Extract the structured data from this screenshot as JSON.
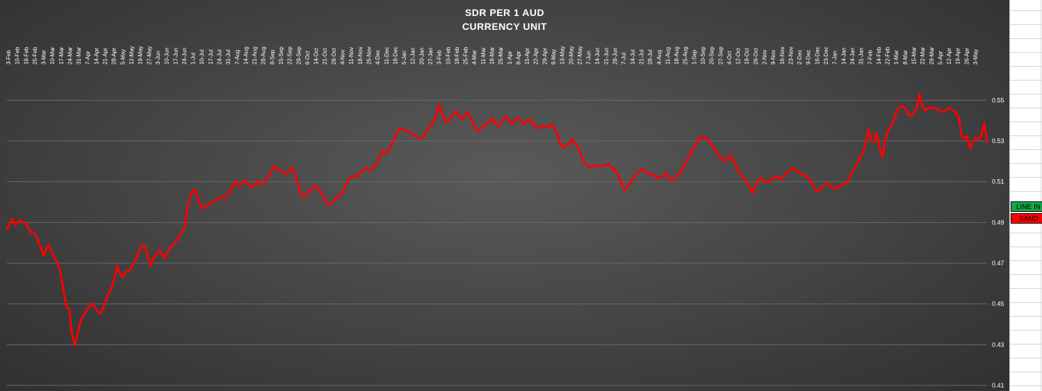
{
  "chart_data": {
    "type": "line",
    "title": [
      "SDR PER 1 AUD",
      "CURRENCY UNIT"
    ],
    "ylim": [
      0.41,
      0.56
    ],
    "y_ticks": [
      "0.41",
      "0.43",
      "0.45",
      "0.47",
      "0.49",
      "0.51",
      "0.53",
      "0.55"
    ],
    "x_tick_labels": [
      "3-Feb",
      "10-Feb",
      "18-Feb",
      "25-Feb",
      "3-Mar",
      "10-Mar",
      "17-Mar",
      "24-Mar",
      "31-Mar",
      "7-Apr",
      "14-Apr",
      "21-Apr",
      "28-Apr",
      "5-May",
      "12-May",
      "19-May",
      "27-May",
      "3-Jun",
      "10-Jun",
      "17-Jun",
      "24-Jun",
      "1-Jul",
      "10-Jul",
      "17-Jul",
      "24-Jul",
      "31-Jul",
      "7-Aug",
      "14-Aug",
      "21-Aug",
      "28-Aug",
      "8-Sep",
      "15-Sep",
      "22-Sep",
      "29-Sep",
      "6-Oct",
      "14-Oct",
      "21-Oct",
      "28-Oct",
      "4-Nov",
      "11-Nov",
      "18-Nov",
      "25-Nov",
      "4-Dec",
      "11-Dec",
      "18-Dec",
      "5-Jan",
      "12-Jan",
      "20-Jan",
      "27-Jan",
      "3-Feb",
      "10-Feb",
      "18-Feb",
      "25-Feb",
      "4-Mar",
      "11-Mar",
      "18-Mar",
      "25-Mar",
      "1-Apr",
      "8-Apr",
      "15-Apr",
      "22-Apr",
      "29-Apr",
      "6-May",
      "13-May",
      "20-May",
      "27-May",
      "7-Jun",
      "14-Jun",
      "21-Jun",
      "28-Jun",
      "7-Jul",
      "14-Jul",
      "21-Jul",
      "28-Jul",
      "4-Aug",
      "11-Aug",
      "18-Aug",
      "25-Aug",
      "1-Sep",
      "10-Sep",
      "20-Sep",
      "27-Sep",
      "4-Oct",
      "12-Oct",
      "19-Oct",
      "26-Oct",
      "2-Nov",
      "9-Nov",
      "16-Nov",
      "23-Nov",
      "2-Dec",
      "9-Dec",
      "16-Dec",
      "23-Dec",
      "7-Jan",
      "14-Jan",
      "24-Jan",
      "31-Jan",
      "7-Feb",
      "14-Feb",
      "22-Feb",
      "1-Mar",
      "8-Mar",
      "15-Mar",
      "22-Mar",
      "29-Mar",
      "5-Apr",
      "12-Apr",
      "19-Apr",
      "26-Apr",
      "3-May"
    ],
    "series": [
      {
        "color": "#ff0000",
        "values": [
          0.4866,
          0.4893,
          0.4918,
          0.4889,
          0.4905,
          0.4911,
          0.4898,
          0.4895,
          0.4855,
          0.4853,
          0.4845,
          0.4809,
          0.4776,
          0.4736,
          0.4774,
          0.4789,
          0.4749,
          0.4721,
          0.4699,
          0.4649,
          0.4569,
          0.4487,
          0.4477,
          0.4353,
          0.4299,
          0.4351,
          0.4413,
          0.4442,
          0.4466,
          0.4482,
          0.4506,
          0.4483,
          0.4467,
          0.4453,
          0.4476,
          0.4514,
          0.4555,
          0.4576,
          0.4621,
          0.4687,
          0.4648,
          0.4632,
          0.4657,
          0.4662,
          0.4677,
          0.4702,
          0.4732,
          0.4767,
          0.4791,
          0.4779,
          0.4725,
          0.4691,
          0.4727,
          0.4749,
          0.4765,
          0.4743,
          0.4725,
          0.4758,
          0.4783,
          0.4791,
          0.4808,
          0.4834,
          0.4852,
          0.4878,
          0.4979,
          0.5032,
          0.5061,
          0.5048,
          0.5001,
          0.4967,
          0.4975,
          0.4986,
          0.4989,
          0.5001,
          0.5012,
          0.5021,
          0.5023,
          0.5019,
          0.5033,
          0.5052,
          0.5082,
          0.5101,
          0.5079,
          0.5091,
          0.5102,
          0.5098,
          0.5082,
          0.5073,
          0.5089,
          0.5102,
          0.5088,
          0.5094,
          0.5112,
          0.5137,
          0.5161,
          0.5178,
          0.5161,
          0.5152,
          0.5148,
          0.5137,
          0.5153,
          0.5171,
          0.5138,
          0.5092,
          0.5039,
          0.5021,
          0.5034,
          0.5056,
          0.5071,
          0.5079,
          0.5064,
          0.5051,
          0.5029,
          0.5002,
          0.4986,
          0.4995,
          0.5012,
          0.5028,
          0.5033,
          0.5051,
          0.5087,
          0.5113,
          0.5126,
          0.5128,
          0.5125,
          0.5141,
          0.5159,
          0.5168,
          0.5162,
          0.5158,
          0.5169,
          0.5192,
          0.5223,
          0.5251,
          0.5241,
          0.5252,
          0.5274,
          0.5301,
          0.5339,
          0.5362,
          0.5359,
          0.5351,
          0.5349,
          0.5337,
          0.5329,
          0.5322,
          0.5313,
          0.5318,
          0.5333,
          0.5359,
          0.5376,
          0.5389,
          0.5433,
          0.5479,
          0.5436,
          0.5401,
          0.5393,
          0.5412,
          0.5437,
          0.5446,
          0.5422,
          0.5407,
          0.5423,
          0.5443,
          0.5418,
          0.5388,
          0.5356,
          0.5349,
          0.5365,
          0.5378,
          0.5387,
          0.5397,
          0.5412,
          0.5384,
          0.5372,
          0.5388,
          0.5412,
          0.5418,
          0.5394,
          0.5385,
          0.5406,
          0.5413,
          0.5398,
          0.5383,
          0.5394,
          0.5407,
          0.5389,
          0.5371,
          0.5362,
          0.5369,
          0.5374,
          0.5366,
          0.5374,
          0.5382,
          0.5362,
          0.5322,
          0.5285,
          0.5266,
          0.5275,
          0.5288,
          0.5311,
          0.5293,
          0.5276,
          0.5241,
          0.5206,
          0.5183,
          0.5172,
          0.5176,
          0.5182,
          0.5179,
          0.5174,
          0.5178,
          0.5184,
          0.5187,
          0.5173,
          0.5161,
          0.5138,
          0.5112,
          0.5074,
          0.5061,
          0.5081,
          0.5102,
          0.5122,
          0.5141,
          0.5151,
          0.5162,
          0.5151,
          0.5139,
          0.5137,
          0.5131,
          0.5122,
          0.5116,
          0.5124,
          0.5141,
          0.5128,
          0.5107,
          0.5111,
          0.5127,
          0.5139,
          0.5156,
          0.5187,
          0.5214,
          0.5239,
          0.5262,
          0.5287,
          0.5306,
          0.5323,
          0.5318,
          0.5307,
          0.5292,
          0.5271,
          0.5246,
          0.5229,
          0.5214,
          0.5201,
          0.5211,
          0.5232,
          0.5204,
          0.5182,
          0.5153,
          0.5132,
          0.5118,
          0.5093,
          0.5072,
          0.5042,
          0.5081,
          0.5112,
          0.5117,
          0.5102,
          0.5098,
          0.5103,
          0.5118,
          0.5127,
          0.5119,
          0.5112,
          0.5124,
          0.5142,
          0.5153,
          0.5167,
          0.5161,
          0.5148,
          0.5139,
          0.5132,
          0.5129,
          0.5111,
          0.5091,
          0.5065,
          0.5052,
          0.5062,
          0.5078,
          0.5092,
          0.5089,
          0.5074,
          0.5064,
          0.5073,
          0.5081,
          0.5087,
          0.5094,
          0.5113,
          0.5141,
          0.5163,
          0.5187,
          0.5219,
          0.5243,
          0.5282,
          0.5358,
          0.5303,
          0.5298,
          0.5341,
          0.5262,
          0.5221,
          0.5309,
          0.5354,
          0.5371,
          0.5403,
          0.5445,
          0.5467,
          0.5472,
          0.5461,
          0.5432,
          0.5423,
          0.5441,
          0.5452,
          0.5531,
          0.5476,
          0.5449,
          0.5458,
          0.5467,
          0.5459,
          0.5462,
          0.5453,
          0.5442,
          0.5448,
          0.5459,
          0.5461,
          0.5448,
          0.5441,
          0.5413,
          0.5323,
          0.5311,
          0.5322,
          0.5261,
          0.5298,
          0.5317,
          0.5307,
          0.5328,
          0.5389,
          0.5294
        ]
      }
    ],
    "legend": [
      {
        "label": "LINE IN",
        "color": "#17a548"
      },
      {
        "label": "SAND",
        "color": "#ff0000"
      }
    ],
    "grid": true
  }
}
